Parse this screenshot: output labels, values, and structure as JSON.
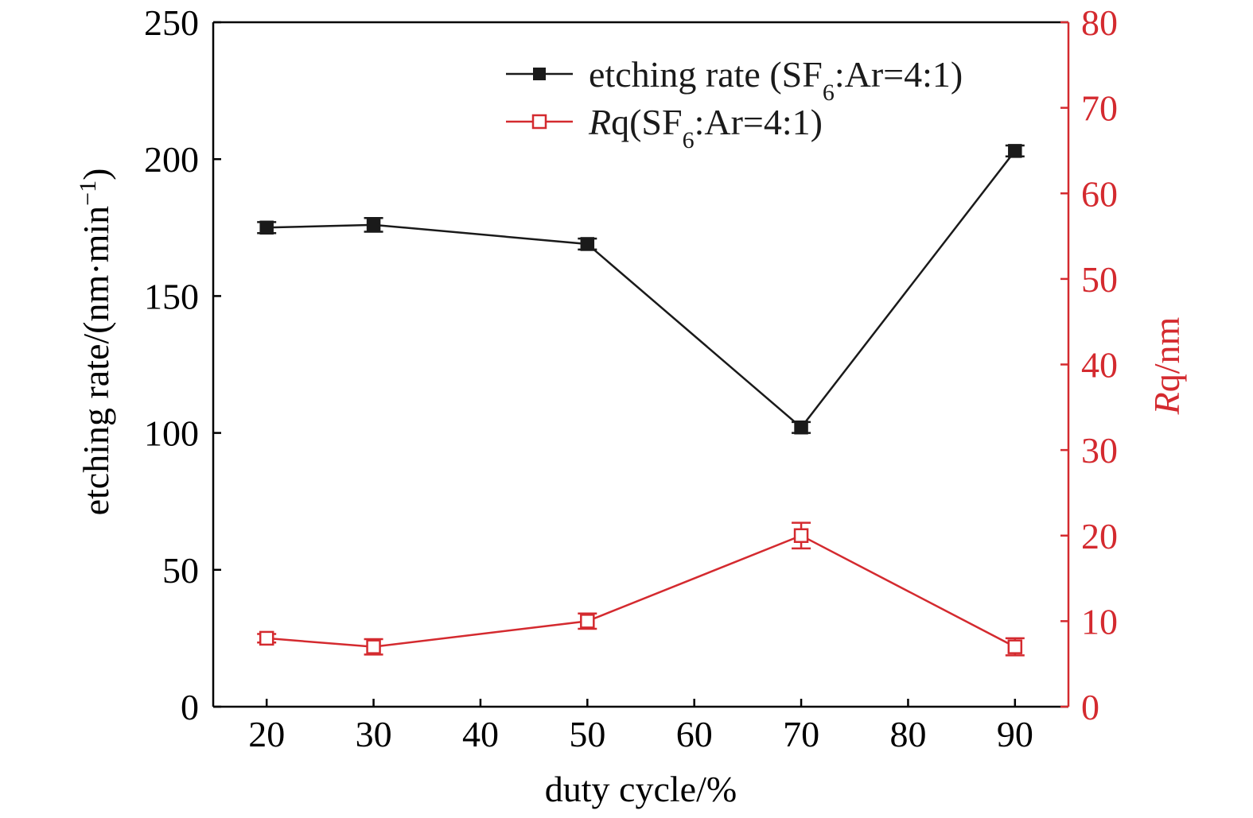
{
  "chart_data": {
    "type": "line",
    "x": [
      20,
      30,
      50,
      70,
      90
    ],
    "xlabel": "duty cycle/%",
    "xlim": [
      15,
      95
    ],
    "xticks": [
      20,
      30,
      40,
      50,
      60,
      70,
      80,
      90
    ],
    "grid": false,
    "legend_position": "top-right",
    "axes": {
      "left": {
        "label_prefix": "etching rate/(nm·min",
        "label_sup": "−1",
        "label_suffix": ")",
        "lim": [
          0,
          250
        ],
        "ticks": [
          0,
          50,
          100,
          150,
          200,
          250
        ],
        "color": "#000000"
      },
      "right": {
        "label_italic": "R",
        "label_rest": "q/nm",
        "lim": [
          0,
          80
        ],
        "ticks": [
          0,
          10,
          20,
          30,
          40,
          50,
          60,
          70,
          80
        ],
        "color": "#d42a2f"
      }
    },
    "series": [
      {
        "name": "etching rate (SF6:Ar=4:1)",
        "legend_parts": {
          "before": "etching rate (SF",
          "sub": "6",
          "after": ":Ar=4:1)"
        },
        "axis": "left",
        "marker": "filled-square",
        "color": "#1a1a1a",
        "values": [
          175,
          176,
          169,
          102,
          203
        ],
        "errors": [
          2,
          2.5,
          2,
          2,
          2
        ]
      },
      {
        "name": "Rq(SF6:Ar=4:1)",
        "legend_parts": {
          "italic": "R",
          "before": "q(SF",
          "sub": "6",
          "after": ":Ar=4:1)"
        },
        "axis": "right",
        "marker": "open-square",
        "color": "#d42a2f",
        "values": [
          8,
          7,
          10,
          20,
          7
        ],
        "errors": [
          0.5,
          0.9,
          0.9,
          1.5,
          1.0
        ]
      }
    ]
  }
}
